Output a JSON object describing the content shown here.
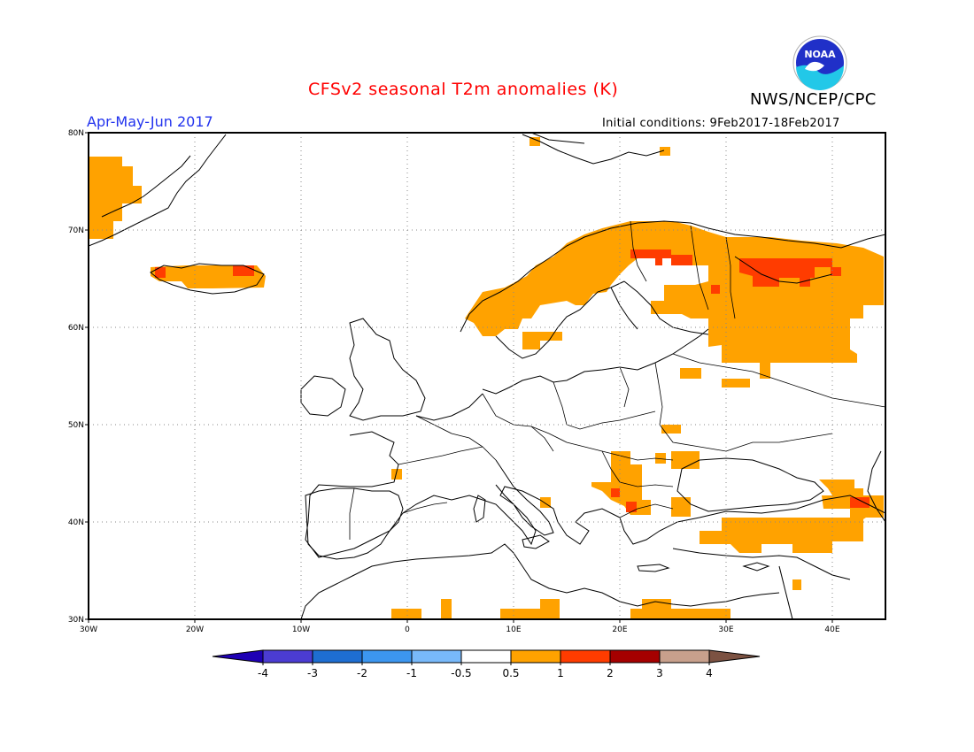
{
  "title": "CFSv2 seasonal T2m anomalies (K)",
  "period": "Apr-May-Jun 2017",
  "initial_conditions": "Initial conditions: 9Feb2017-18Feb2017",
  "agency": "NWS/NCEP/CPC",
  "logo_text": "NOAA",
  "colors": {
    "title": "#ff0000",
    "period": "#2233ee",
    "anom_05_1": "#ffa200",
    "anom_1_2": "#ff3c00",
    "anom_2_3": "#a50000",
    "coast": "#000000"
  },
  "map": {
    "lat_labels": [
      "80N",
      "70N",
      "60N",
      "50N",
      "40N",
      "30N"
    ],
    "lon_labels": [
      "30W",
      "20W",
      "10W",
      "0",
      "10E",
      "20E",
      "30E",
      "40E"
    ],
    "grid": "dotted",
    "lon_range": [
      -30,
      45
    ],
    "lat_range": [
      30,
      80
    ]
  },
  "anomaly_regions": [
    {
      "name": "Greenland east coast",
      "level": "0.5-1"
    },
    {
      "name": "Iceland",
      "level": "0.5-1"
    },
    {
      "name": "Scandinavia",
      "level": "0.5-1"
    },
    {
      "name": "Northern Finland / Kola",
      "level": "1-2"
    },
    {
      "name": "NW Russia",
      "level": "0.5-1"
    },
    {
      "name": "Balkans",
      "level": "0.5-1"
    },
    {
      "name": "Turkey",
      "level": "0.5-1"
    },
    {
      "name": "Caucasus",
      "level": "1-2"
    },
    {
      "name": "North Africa coast",
      "level": "0.5-1"
    }
  ],
  "colorbar": {
    "labels": [
      "-4",
      "-3",
      "-2",
      "-1",
      "-0.5",
      "0.5",
      "1",
      "2",
      "3",
      "4"
    ],
    "colors": [
      "#1e00b4",
      "#4b3cd2",
      "#1e6ed2",
      "#3c96f0",
      "#78b9fa",
      "#ffffff",
      "#ffa200",
      "#ff3c00",
      "#a50000",
      "#c8a08c",
      "#7c5242"
    ]
  }
}
